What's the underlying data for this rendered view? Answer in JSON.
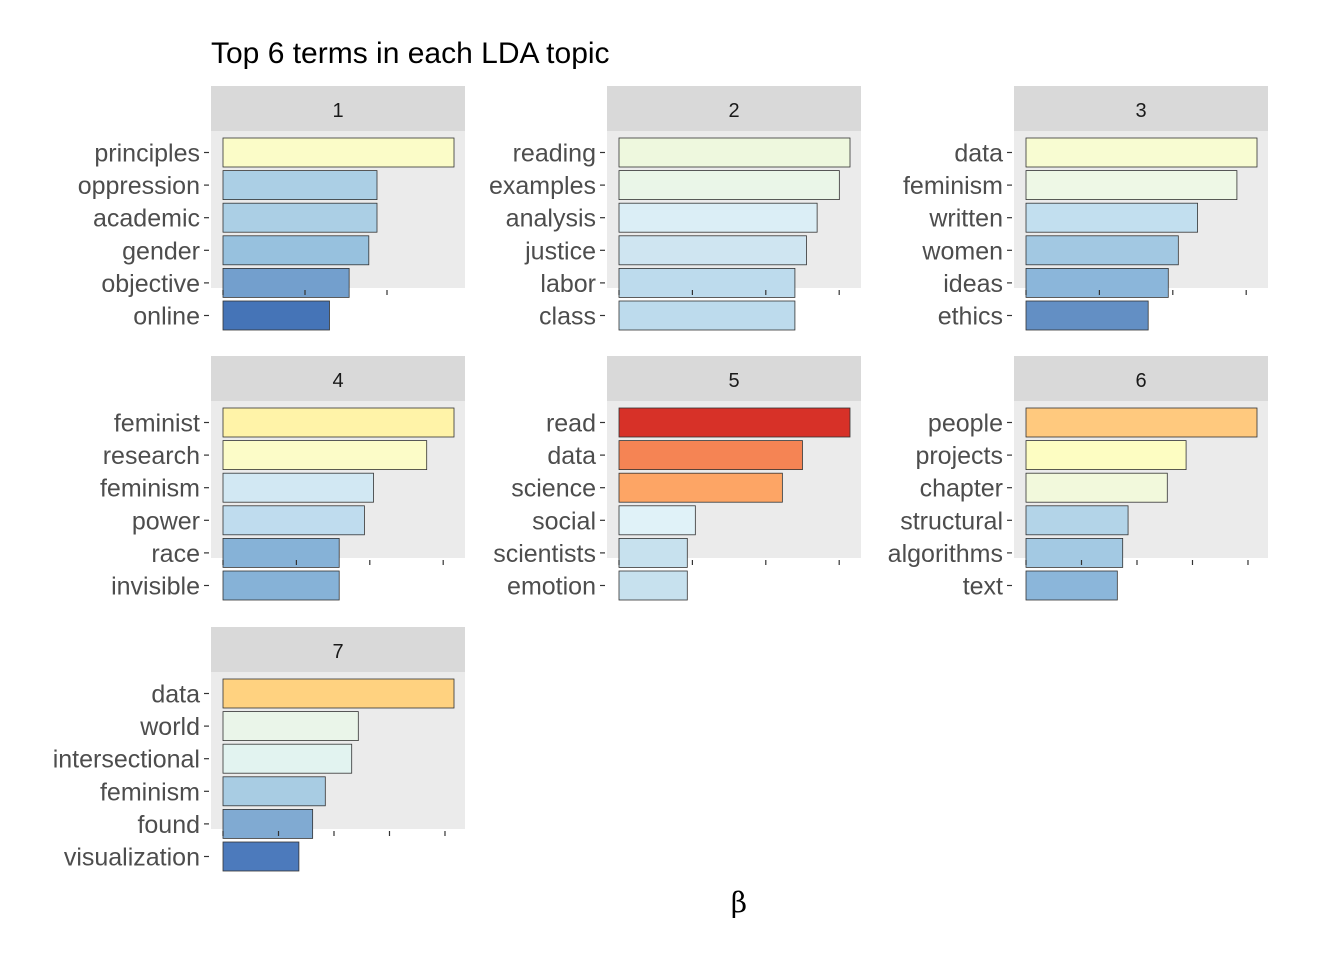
{
  "chart_data": {
    "type": "bar",
    "orientation": "horizontal",
    "title": "Top 6 terms in each LDA topic",
    "xlabel": "β",
    "ylabel": "",
    "facet_layout": "3 columns, free scales",
    "grid": false,
    "legend": "none",
    "color_scale": "RdYlBu by beta",
    "tick_labels_visible": false,
    "facets": [
      {
        "topic": "1",
        "terms": [
          "principles",
          "oppression",
          "academic",
          "gender",
          "objective",
          "online"
        ],
        "values": [
          1.41,
          0.94,
          0.94,
          0.89,
          0.77,
          0.65
        ],
        "colors": [
          "#fbfcc8",
          "#abcfe5",
          "#abcfe5",
          "#97c1de",
          "#739fcd",
          "#4574b7"
        ]
      },
      {
        "topic": "2",
        "terms": [
          "reading",
          "examples",
          "analysis",
          "justice",
          "labor",
          "class"
        ],
        "values": [
          2.6,
          2.48,
          2.23,
          2.11,
          1.98,
          1.98
        ],
        "colors": [
          "#eef8de",
          "#eaf6e8",
          "#dbeef6",
          "#cfe5f1",
          "#bddbed",
          "#bddbed"
        ]
      },
      {
        "topic": "3",
        "terms": [
          "data",
          "feminism",
          "written",
          "women",
          "ideas",
          "ethics"
        ],
        "values": [
          2.76,
          2.52,
          2.05,
          1.82,
          1.7,
          1.46
        ],
        "colors": [
          "#f8fcd2",
          "#eef8e6",
          "#c2dfef",
          "#a2c8e2",
          "#8bb6da",
          "#638fc4"
        ]
      },
      {
        "topic": "4",
        "terms": [
          "feminist",
          "research",
          "feminism",
          "power",
          "race",
          "invisible"
        ],
        "values": [
          3.3,
          2.91,
          2.15,
          2.02,
          1.66,
          1.66
        ],
        "colors": [
          "#fff3a8",
          "#fcfcc8",
          "#d2e8f3",
          "#bfdcee",
          "#86b2d7",
          "#86b2d7"
        ]
      },
      {
        "topic": "5",
        "terms": [
          "read",
          "data",
          "science",
          "social",
          "scientists",
          "emotion"
        ],
        "values": [
          3.45,
          2.74,
          2.44,
          1.14,
          1.02,
          1.02
        ],
        "colors": [
          "#d73128",
          "#f58454",
          "#fda565",
          "#e0f2f8",
          "#c7e1ee",
          "#c7e1ee"
        ]
      },
      {
        "topic": "6",
        "terms": [
          "people",
          "projects",
          "chapter",
          "structural",
          "algorithms",
          "text"
        ],
        "values": [
          4.3,
          2.98,
          2.63,
          1.9,
          1.8,
          1.7
        ],
        "colors": [
          "#ffc97e",
          "#fdfdc2",
          "#f2f9dc",
          "#b3d4e8",
          "#a3c9e3",
          "#8bb6da"
        ]
      },
      {
        "topic": "7",
        "terms": [
          "data",
          "world",
          "intersectional",
          "feminism",
          "found",
          "visualization"
        ],
        "values": [
          4.2,
          2.46,
          2.34,
          1.86,
          1.63,
          1.38
        ],
        "colors": [
          "#ffd280",
          "#eaf5e9",
          "#e2f3f0",
          "#a8cce3",
          "#80aad2",
          "#4c7abc"
        ]
      }
    ]
  }
}
